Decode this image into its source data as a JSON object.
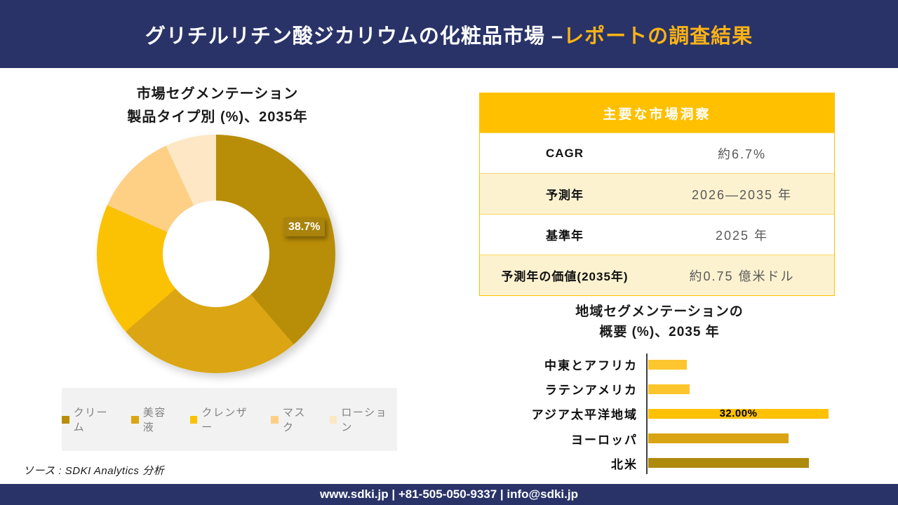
{
  "header": {
    "title_main": "グリチルリチン酸ジカリウムの化粧品市場 –",
    "title_accent": "レポートの調査結果"
  },
  "donut_section": {
    "title_line1": "市場セグメンテーション",
    "title_line2": "製品タイプ別 (%)、2035年"
  },
  "insights_table": {
    "header": "主要な市場洞察",
    "rows": [
      {
        "label": "CAGR",
        "value": "約6.7%"
      },
      {
        "label": "予測年",
        "value": "2026—2035 年"
      },
      {
        "label": "基準年",
        "value": "2025 年"
      },
      {
        "label": "予測年の価値(2035年)",
        "value": "約0.75 億米ドル"
      }
    ]
  },
  "regional_section": {
    "title_line1": "地域セグメンテーションの",
    "title_line2": "概要 (%)、2035 年"
  },
  "source_note": "ソース : SDKI Analytics 分析",
  "footer": {
    "text": "www.sdki.jp | +81-505-050-9337 | info@sdki.jp"
  },
  "palette": {
    "navy": "#293368",
    "title_accent": "#fcb316",
    "gold": "#ffc000",
    "table_cream": "#fdf2d0",
    "table_border": "#ffd966",
    "legend_bg": "#f2f2f2",
    "axis": "#404040"
  },
  "chart_data": [
    {
      "type": "pie",
      "subtype": "donut",
      "title": "市場セグメンテーション 製品タイプ別 (%)、2035年",
      "labels": [
        "クリーム",
        "美容液",
        "クレンザー",
        "マスク",
        "ローション"
      ],
      "values": [
        38.7,
        25.0,
        18.0,
        11.4,
        6.9
      ],
      "colors": [
        "#B88D08",
        "#DBA513",
        "#FBC203",
        "#FDD086",
        "#FDE7C4"
      ],
      "start_angle_deg": 0,
      "direction": "clockwise",
      "legend_position": "bottom",
      "data_labels": [
        {
          "slice": "クリーム",
          "text": "38.7%"
        }
      ],
      "note": "Only the クリーム slice is labeled (38.7%); remaining values estimated from arc angles."
    },
    {
      "type": "bar",
      "orientation": "horizontal",
      "title": "地域セグメンテーションの概要 (%)、2035 年",
      "categories": [
        "中東とアフリカ",
        "ラテンアメリカ",
        "アジア太平洋地域",
        "ヨーロッパ",
        "北米"
      ],
      "values": [
        6.9,
        7.4,
        32.0,
        24.9,
        28.5
      ],
      "colors": [
        "#FDC62F",
        "#FDC52C",
        "#FFC103",
        "#D9A414",
        "#AE8A0D"
      ],
      "data_labels": [
        {
          "category": "アジア太平洋地域",
          "text": "32.00%"
        }
      ],
      "value_axis": {
        "visible": false,
        "approx_max": 32
      },
      "note": "Only アジア太平洋地域 is labeled (32.00%); remaining values estimated from bar lengths."
    }
  ]
}
